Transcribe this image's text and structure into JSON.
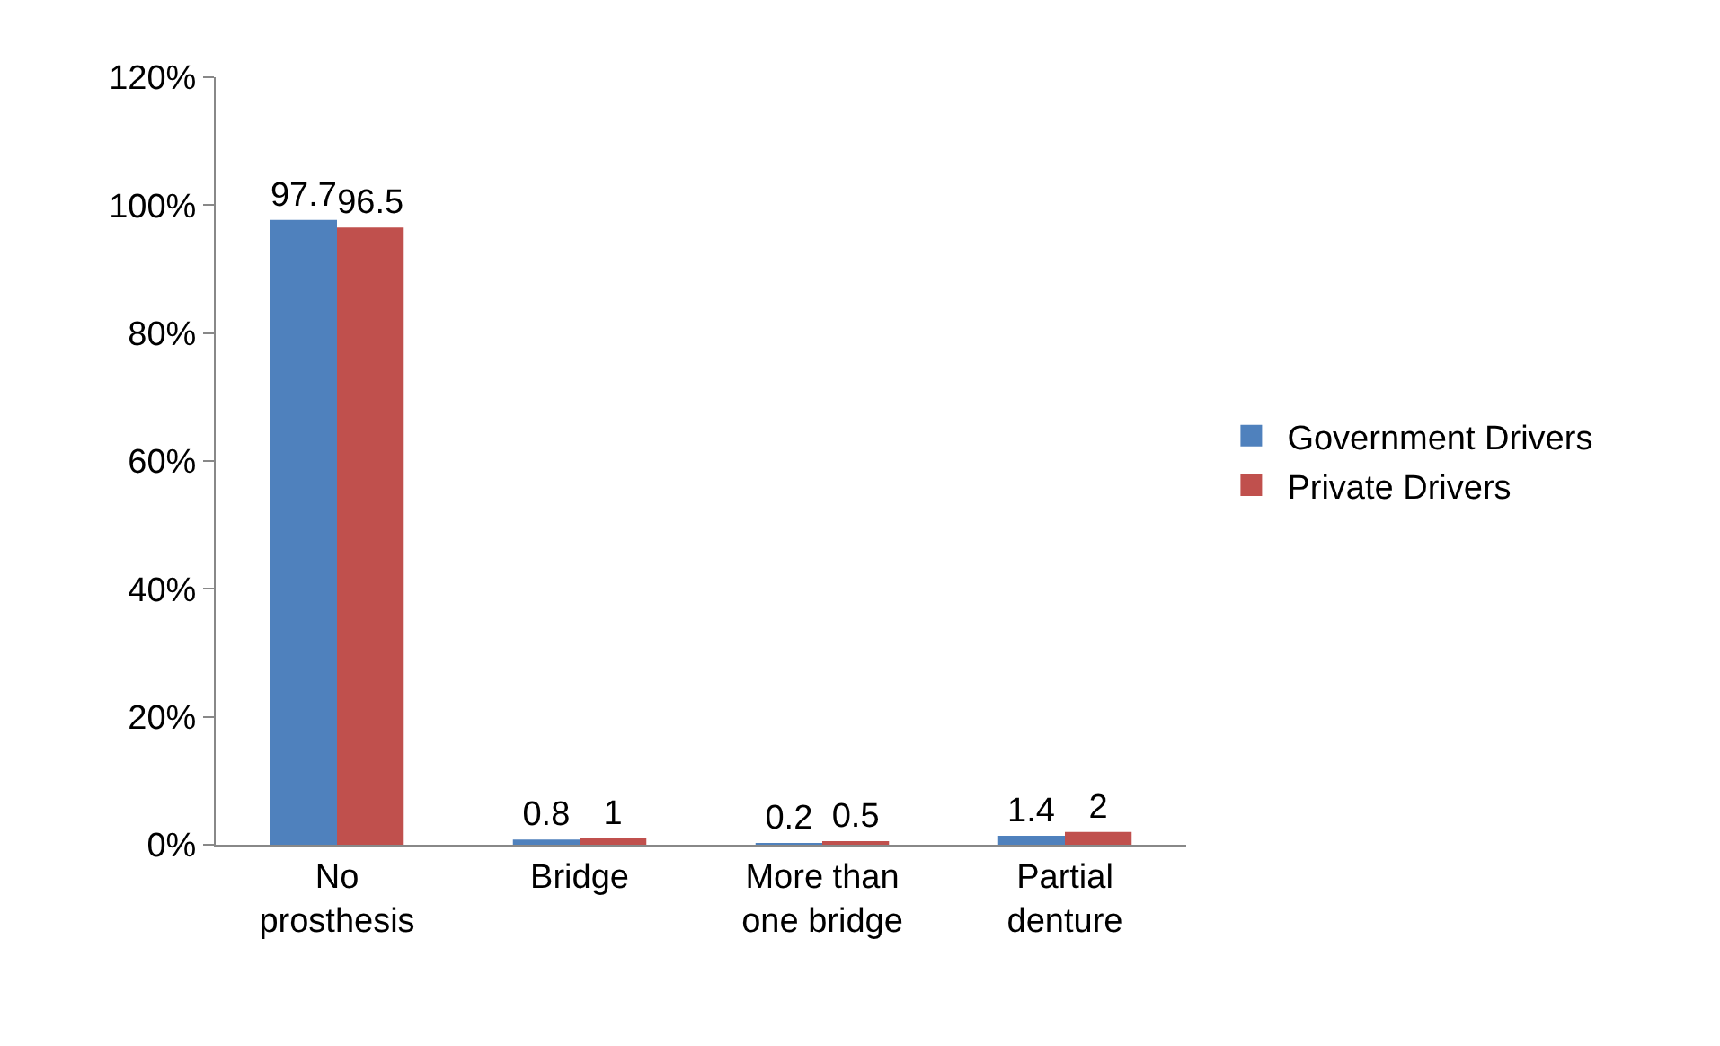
{
  "chart_data": {
    "type": "bar",
    "categories": [
      "No prosthesis",
      "Bridge",
      "More than one bridge",
      "Partial denture"
    ],
    "series": [
      {
        "name": "Government Drivers",
        "color": "#4f81bd",
        "values": [
          97.7,
          0.8,
          0.2,
          1.4
        ]
      },
      {
        "name": "Private Drivers",
        "color": "#c0504d",
        "values": [
          96.5,
          1,
          0.5,
          2
        ]
      }
    ],
    "ylim": [
      0,
      120
    ],
    "yticks": [
      {
        "value": 0,
        "label": "0%"
      },
      {
        "value": 20,
        "label": "20%"
      },
      {
        "value": 40,
        "label": "40%"
      },
      {
        "value": 60,
        "label": "60%"
      },
      {
        "value": 80,
        "label": "80%"
      },
      {
        "value": 100,
        "label": "100%"
      },
      {
        "value": 120,
        "label": "120%"
      }
    ],
    "data_labels": true,
    "grid": false,
    "legend": "right"
  }
}
